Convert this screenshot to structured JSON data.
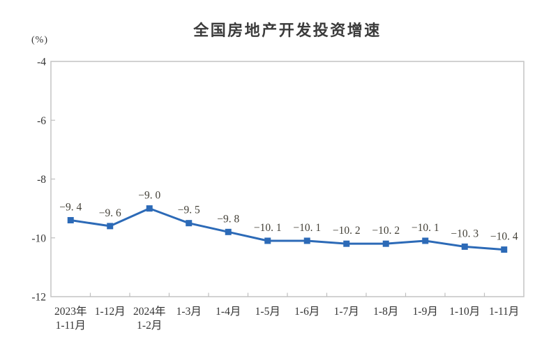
{
  "page": {
    "background_color": "#ffffff"
  },
  "chart_data": {
    "type": "line",
    "title": "全国房地产开发投资增速",
    "ylabel": "(%)",
    "xlabel": "",
    "categories": [
      [
        "2023年",
        "1-11月"
      ],
      [
        "1-12月"
      ],
      [
        "2024年",
        "1-2月"
      ],
      [
        "1-3月"
      ],
      [
        "1-4月"
      ],
      [
        "1-5月"
      ],
      [
        "1-6月"
      ],
      [
        "1-7月"
      ],
      [
        "1-8月"
      ],
      [
        "1-9月"
      ],
      [
        "1-10月"
      ],
      [
        "1-11月"
      ]
    ],
    "series": [
      {
        "name": "全国房地产开发投资增速",
        "values": [
          -9.4,
          -9.6,
          -9.0,
          -9.5,
          -9.8,
          -10.1,
          -10.1,
          -10.2,
          -10.2,
          -10.1,
          -10.3,
          -10.4
        ]
      }
    ],
    "ylim": [
      -12,
      -4
    ],
    "y_ticks": [
      -4,
      -6,
      -8,
      -10,
      -12
    ],
    "grid": false,
    "legend_position": "none",
    "data_labels": true,
    "marker_shape": "square",
    "colors": {
      "line": "#2c6ab7",
      "marker": "#2c6ab7",
      "frame": "#c4c4c4",
      "tick": "#bfbfbf",
      "axis_text": "#333333",
      "data_label_text": "#444138",
      "title_text": "#3b3b3b"
    }
  }
}
